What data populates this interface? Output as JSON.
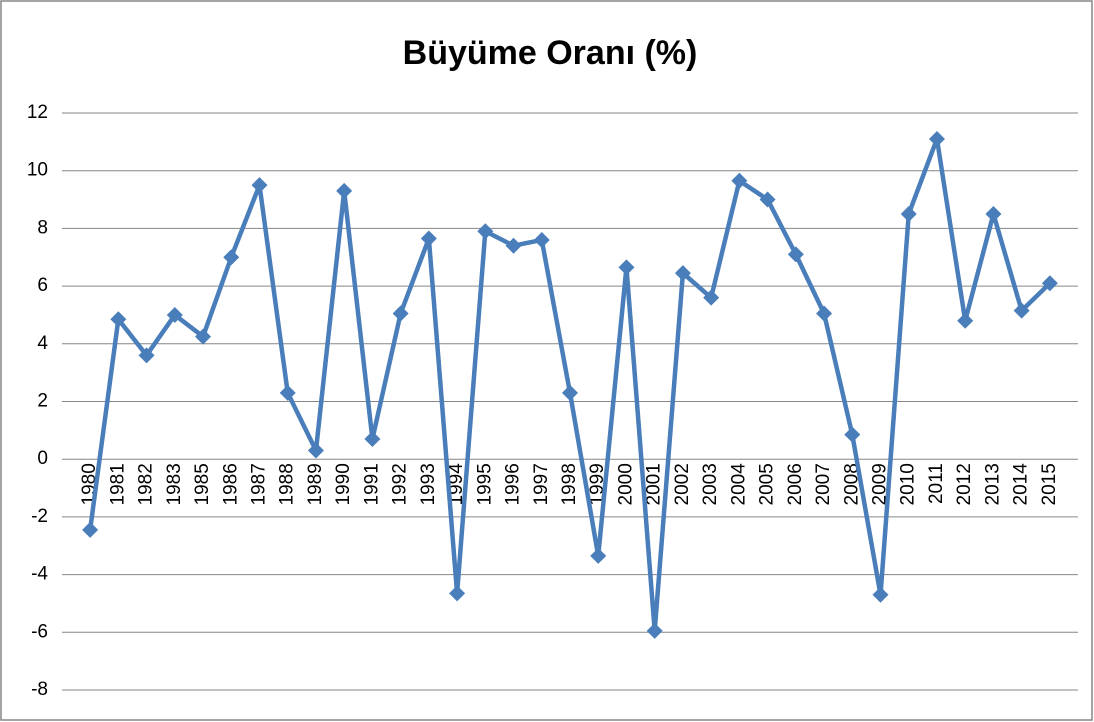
{
  "chart_data": {
    "type": "line",
    "title": "Büyüme Oranı (%)",
    "categories": [
      "1980",
      "1981",
      "1982",
      "1983",
      "1985",
      "1986",
      "1987",
      "1988",
      "1989",
      "1990",
      "1991",
      "1992",
      "1993",
      "1994",
      "1995",
      "1996",
      "1997",
      "1998",
      "1999",
      "2000",
      "2001",
      "2002",
      "2003",
      "2004",
      "2005",
      "2006",
      "2007",
      "2008",
      "2009",
      "2010",
      "2011",
      "2012",
      "2013",
      "2014",
      "2015"
    ],
    "series": [
      {
        "color": "#4a7ebb",
        "values": [
          -2.45,
          4.85,
          3.6,
          5.0,
          4.25,
          7.0,
          9.5,
          2.3,
          0.3,
          9.3,
          0.7,
          5.05,
          7.65,
          -4.65,
          7.9,
          7.4,
          7.6,
          2.3,
          -3.35,
          6.65,
          -5.95,
          6.45,
          5.6,
          9.65,
          9.0,
          7.1,
          5.05,
          0.85,
          -4.7,
          8.5,
          11.1,
          4.8,
          8.5,
          5.15,
          6.1
        ]
      }
    ],
    "ylim": [
      -8,
      12
    ],
    "yticks": [
      -8,
      -6,
      -4,
      -2,
      0,
      2,
      4,
      6,
      8,
      10,
      12
    ],
    "grid": true
  }
}
